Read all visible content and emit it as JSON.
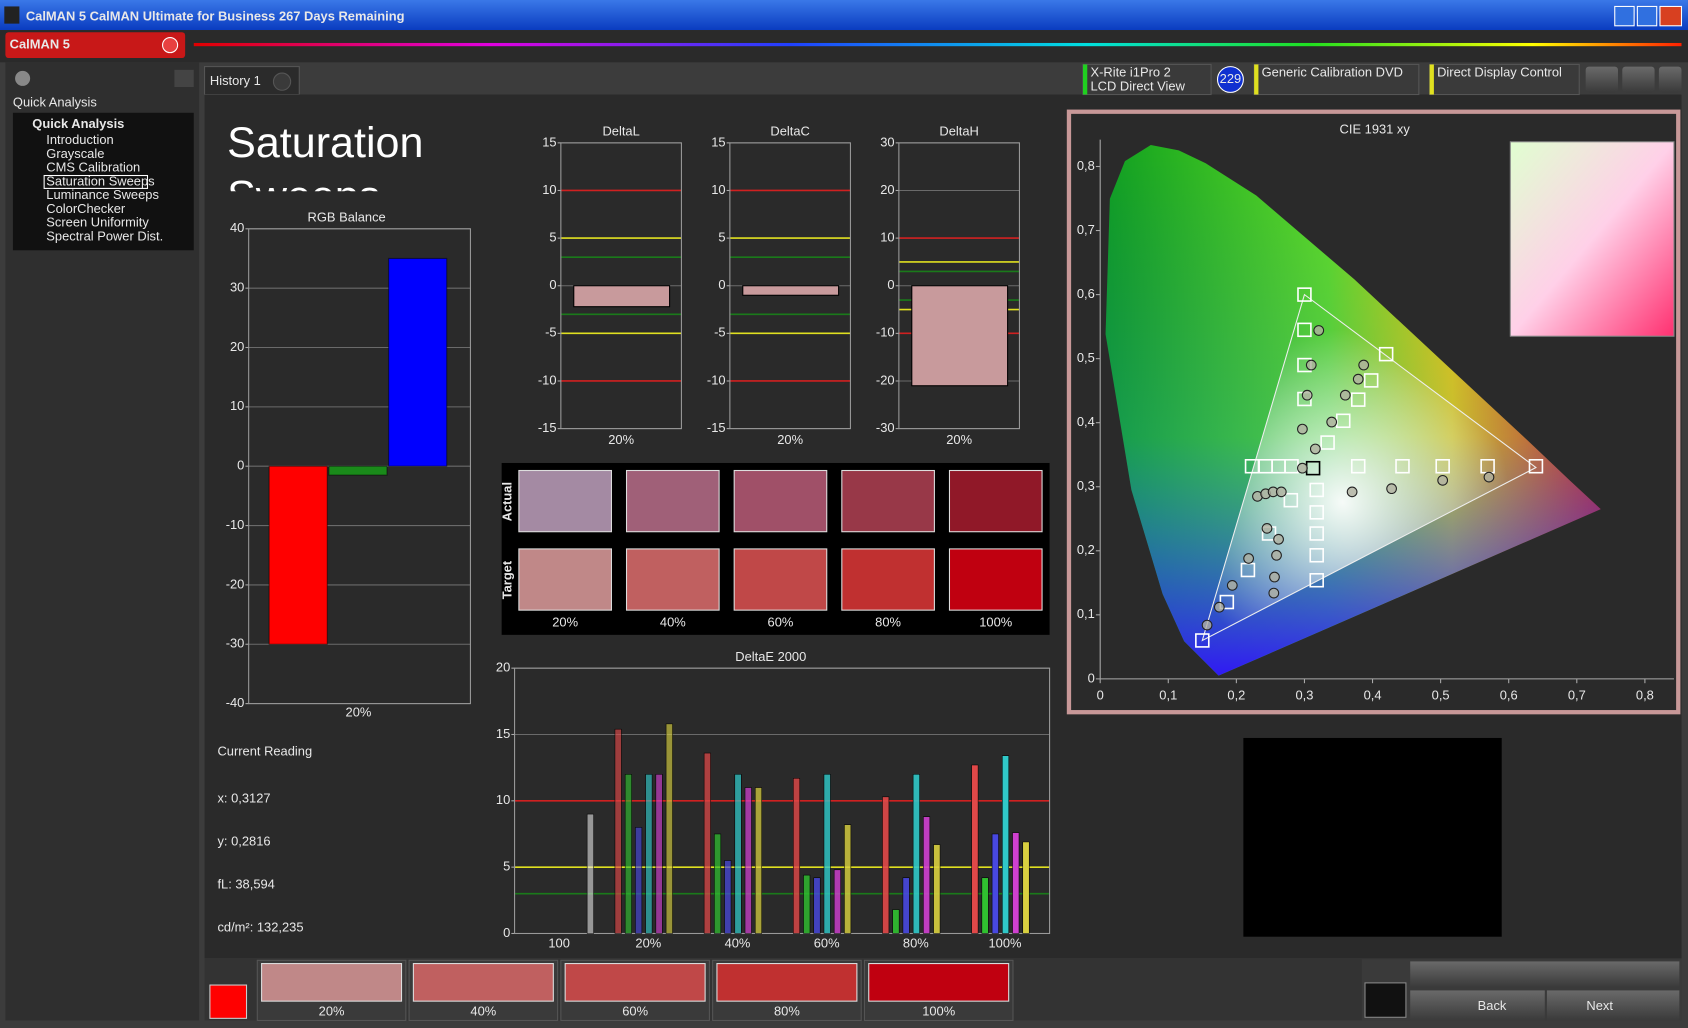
{
  "window": {
    "title": "CalMAN 5 CalMAN Ultimate for Business 267 Days Remaining",
    "logo": "CalMAN 5"
  },
  "sidebar": {
    "header": "Quick Analysis",
    "group": "Quick Analysis",
    "items": [
      "Introduction",
      "Grayscale",
      "CMS Calibration",
      "Saturation Sweeps",
      "Luminance Sweeps",
      "ColorChecker",
      "Screen Uniformity",
      "Spectral Power Dist."
    ],
    "selected": 3
  },
  "tab": "History 1",
  "toolbar": {
    "meter": [
      "X-Rite i1Pro 2",
      "LCD Direct View"
    ],
    "meter_badge": "229",
    "source": "Generic Calibration DVD",
    "display": "Direct Display Control"
  },
  "page_title": "Saturation Sweeps",
  "rgb_balance": {
    "title": "RGB Balance",
    "category": "20%",
    "ylim": [
      -40,
      40
    ],
    "yticks": [
      -40,
      -30,
      -20,
      -10,
      0,
      10,
      20,
      30,
      40
    ],
    "values": [
      -30,
      -1.5,
      35
    ],
    "colors": [
      "#ff0000",
      "#1a8a1a",
      "#0000ff"
    ]
  },
  "delta_charts": [
    {
      "title": "DeltaL",
      "category": "20%",
      "ylim": [
        -15,
        15
      ],
      "yticks": [
        -15,
        -10,
        -5,
        0,
        5,
        10,
        15
      ],
      "value": -2.2,
      "thresholds": [
        {
          "value": 10,
          "color": "#d02020"
        },
        {
          "value": 5,
          "color": "#e0e020"
        },
        {
          "value": 3,
          "color": "#1a7a1a"
        },
        {
          "value": -3,
          "color": "#1a7a1a"
        },
        {
          "value": -5,
          "color": "#e0e020"
        },
        {
          "value": -10,
          "color": "#d02020"
        }
      ]
    },
    {
      "title": "DeltaC",
      "category": "20%",
      "ylim": [
        -15,
        15
      ],
      "yticks": [
        -15,
        -10,
        -5,
        0,
        5,
        10,
        15
      ],
      "value": -1,
      "thresholds": [
        {
          "value": 10,
          "color": "#d02020"
        },
        {
          "value": 5,
          "color": "#e0e020"
        },
        {
          "value": 3,
          "color": "#1a7a1a"
        },
        {
          "value": -3,
          "color": "#1a7a1a"
        },
        {
          "value": -5,
          "color": "#e0e020"
        },
        {
          "value": -10,
          "color": "#d02020"
        }
      ]
    },
    {
      "title": "DeltaH",
      "category": "20%",
      "ylim": [
        -30,
        30
      ],
      "yticks": [
        -30,
        -20,
        -10,
        0,
        10,
        20,
        30
      ],
      "value": -21,
      "thresholds": [
        {
          "value": 10,
          "color": "#d02020"
        },
        {
          "value": 5,
          "color": "#e0e020"
        },
        {
          "value": 3,
          "color": "#1a7a1a"
        },
        {
          "value": -3,
          "color": "#1a7a1a"
        },
        {
          "value": -5,
          "color": "#e0e020"
        },
        {
          "value": -10,
          "color": "#d02020"
        }
      ]
    }
  ],
  "delta_bar_color": "#c89a9c",
  "swatches": {
    "rows": [
      "Actual",
      "Target"
    ],
    "labels": [
      "20%",
      "40%",
      "60%",
      "80%",
      "100%"
    ],
    "actual_colors": [
      "#a48aa3",
      "#a06078",
      "#a05068",
      "#983848",
      "#901828"
    ],
    "target_colors": [
      "#c08888",
      "#c06060",
      "#c04848",
      "#c03030",
      "#c00010"
    ]
  },
  "deltae": {
    "title": "DeltaE 2000",
    "categories": [
      "100",
      "20%",
      "40%",
      "60%",
      "80%",
      "100%"
    ],
    "ylim": [
      0,
      20
    ],
    "yticks": [
      0,
      5,
      10,
      15,
      20
    ],
    "thresholds": [
      {
        "value": 10,
        "color": "#d02020"
      },
      {
        "value": 5,
        "color": "#e0e020"
      },
      {
        "value": 3,
        "color": "#1a7a1a"
      }
    ],
    "series": [
      {
        "color": "#e04848",
        "values": [
          null,
          15.4,
          13.6,
          11.7,
          10.3,
          12.7
        ]
      },
      {
        "color": "#30c030",
        "values": [
          null,
          12,
          7.5,
          4.4,
          1.8,
          4.2
        ]
      },
      {
        "color": "#4848e0",
        "values": [
          null,
          8,
          5.5,
          4.2,
          4.2,
          7.5
        ]
      },
      {
        "color": "#30c8c8",
        "values": [
          null,
          12,
          12,
          12,
          12,
          13.4
        ]
      },
      {
        "color": "#d040d0",
        "values": [
          null,
          12,
          11,
          4.8,
          8.8,
          7.6
        ]
      },
      {
        "color": "#d8d040",
        "values": [
          null,
          15.8,
          11,
          8.2,
          6.7,
          6.9
        ]
      },
      {
        "color": "#f0f0f0",
        "values": [
          9,
          null,
          null,
          null,
          null,
          null
        ]
      }
    ]
  },
  "cie": {
    "title": "CIE 1931 xy",
    "xlim": [
      0,
      0.85
    ],
    "ylim": [
      0,
      0.85
    ],
    "xticks": [
      0,
      {
        "value": 0.1,
        "label": "0,1"
      },
      {
        "value": 0.2,
        "label": "0,2"
      },
      {
        "value": 0.3,
        "label": "0,3"
      },
      {
        "value": 0.4,
        "label": "0,4"
      },
      {
        "value": 0.5,
        "label": "0,5"
      },
      {
        "value": 0.6,
        "label": "0,6"
      },
      {
        "value": 0.7,
        "label": "0,7"
      },
      {
        "value": 0.8,
        "label": "0,8"
      }
    ],
    "yticks": [
      0,
      {
        "value": 0.1,
        "label": "0,1"
      },
      {
        "value": 0.2,
        "label": "0,2"
      },
      {
        "value": 0.3,
        "label": "0,3"
      },
      {
        "value": 0.4,
        "label": "0,4"
      },
      {
        "value": 0.5,
        "label": "0,5"
      },
      {
        "value": 0.6,
        "label": "0,6"
      },
      {
        "value": 0.7,
        "label": "0,7"
      },
      {
        "value": 0.8,
        "label": "0,8"
      }
    ],
    "gamut": {
      "x": [
        0.64,
        0.3,
        0.15
      ],
      "y": [
        0.33,
        0.6,
        0.06
      ]
    },
    "targets": {
      "x": [
        0.3127,
        0.379,
        0.444,
        0.503,
        0.569,
        0.64,
        0.3,
        0.3,
        0.3,
        0.3,
        0.15,
        0.186,
        0.217,
        0.248,
        0.28,
        0.223,
        0.243,
        0.262,
        0.281,
        0.318,
        0.318,
        0.318,
        0.318,
        0.318,
        0.42,
        0.398,
        0.379,
        0.357,
        0.334
      ],
      "y": [
        0.329,
        0.332,
        0.332,
        0.332,
        0.332,
        0.332,
        0.6,
        0.545,
        0.49,
        0.437,
        0.06,
        0.12,
        0.17,
        0.227,
        0.279,
        0.332,
        0.332,
        0.332,
        0.332,
        0.154,
        0.193,
        0.227,
        0.26,
        0.295,
        0.507,
        0.466,
        0.436,
        0.403,
        0.369
      ]
    },
    "measured": {
      "x": [
        0.297,
        0.37,
        0.428,
        0.503,
        0.571,
        0.321,
        0.31,
        0.304,
        0.297,
        0.157,
        0.175,
        0.194,
        0.218,
        0.245,
        0.231,
        0.243,
        0.254,
        0.266,
        0.255,
        0.256,
        0.259,
        0.262,
        0.387,
        0.379,
        0.36,
        0.34,
        0.316
      ],
      "y": [
        0.329,
        0.292,
        0.297,
        0.31,
        0.315,
        0.544,
        0.49,
        0.443,
        0.39,
        0.084,
        0.112,
        0.146,
        0.188,
        0.235,
        0.285,
        0.289,
        0.292,
        0.292,
        0.134,
        0.159,
        0.193,
        0.218,
        0.49,
        0.468,
        0.443,
        0.401,
        0.359
      ]
    }
  },
  "current_reading": {
    "title": "Current Reading",
    "lines": [
      "x: 0,3127",
      "y: 0,2816",
      "fL: 38,594",
      "cd/m²: 132,235"
    ]
  },
  "patch_bar": {
    "current_color": "#ff0000",
    "labels": [
      "20%",
      "40%",
      "60%",
      "80%",
      "100%"
    ],
    "colors": [
      "#c08888",
      "#c06060",
      "#c04848",
      "#c03030",
      "#c00010"
    ]
  },
  "nav": {
    "back": "Back",
    "next": "Next"
  }
}
